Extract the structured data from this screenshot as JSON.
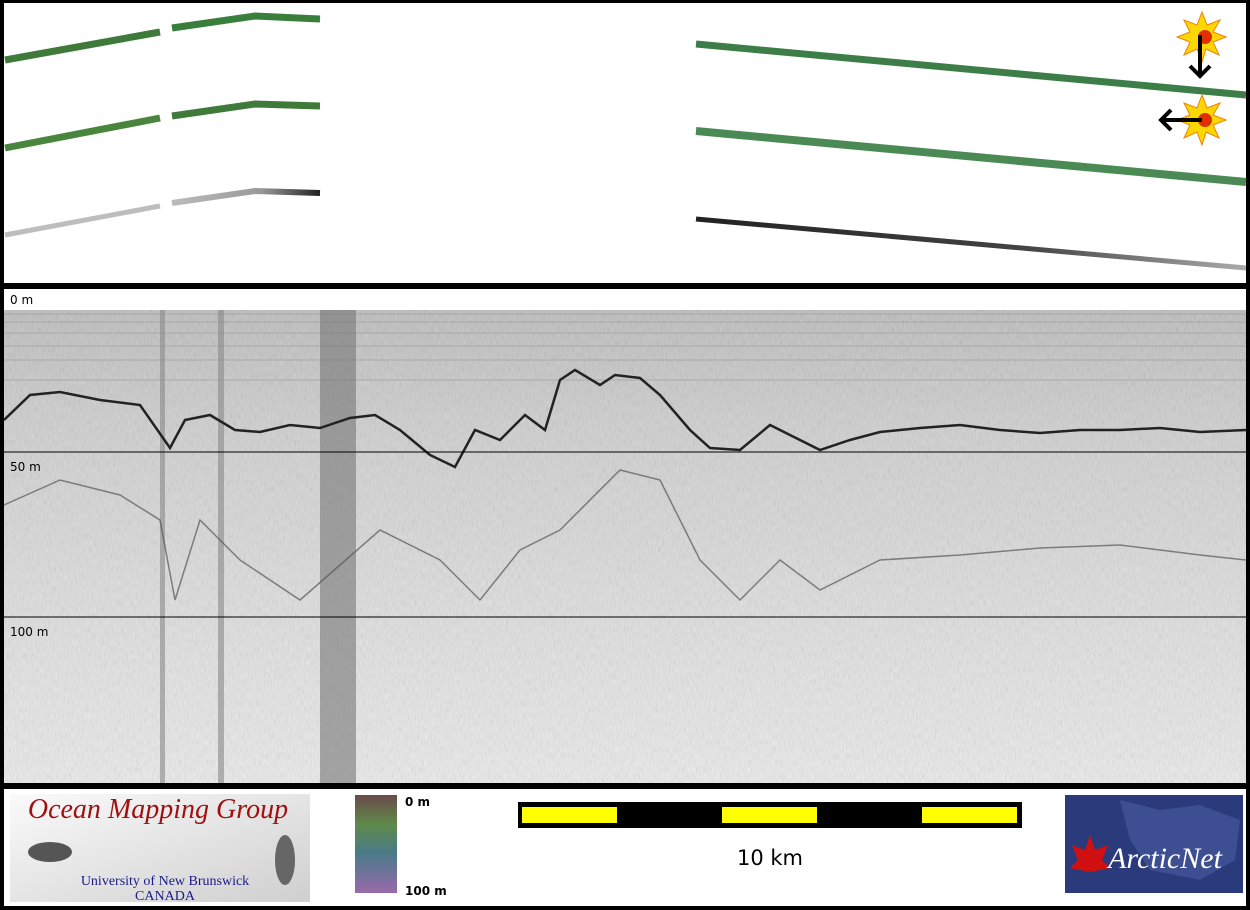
{
  "depth_labels": [
    "0 m",
    "50 m",
    "100 m"
  ],
  "logo": {
    "title": "Ocean Mapping Group",
    "subtitle": "University of New Brunswick",
    "country": "CANADA"
  },
  "colorbar": {
    "top": "0 m",
    "bottom": "100 m"
  },
  "scale_bar": {
    "label": "10 km"
  },
  "partner_logo": {
    "name": "ArcticNet"
  }
}
